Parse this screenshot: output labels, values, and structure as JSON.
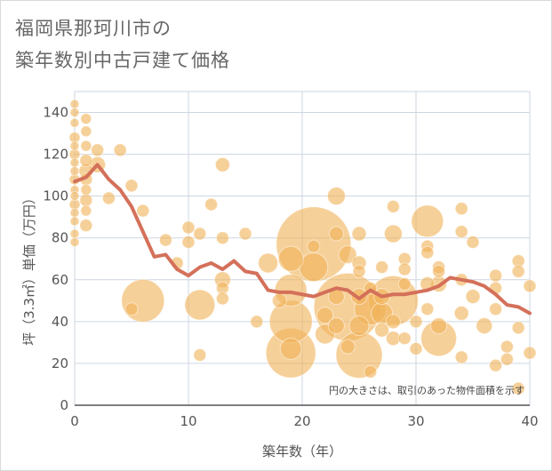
{
  "title_line1": "福岡県那珂川市の",
  "title_line2": "築年数別中古戸建て価格",
  "note": "円の大きさは、取引のあった物件面積を示す",
  "colors": {
    "bubble": "#f0b35a",
    "trend": "#d4705a",
    "grid": "#cdd6e0",
    "axis_text": "#555555"
  },
  "chart_data": {
    "type": "scatter",
    "title": "福岡県那珂川市の 築年数別中古戸建て価格",
    "xlabel": "築年数（年）",
    "ylabel": "坪（3.3㎡）単価（万円）",
    "xlim": [
      0,
      40
    ],
    "ylim": [
      0,
      150
    ],
    "x_ticks": [
      0,
      10,
      20,
      30,
      40
    ],
    "y_ticks": [
      0,
      20,
      40,
      60,
      80,
      100,
      120,
      140
    ],
    "grid": true,
    "size_meaning": "円の大きさは、取引のあった物件面積を示す",
    "bubbles": [
      {
        "x": 0,
        "y": 144,
        "s": 5
      },
      {
        "x": 0,
        "y": 140,
        "s": 5
      },
      {
        "x": 0,
        "y": 135,
        "s": 5
      },
      {
        "x": 0,
        "y": 128,
        "s": 6
      },
      {
        "x": 0,
        "y": 124,
        "s": 5
      },
      {
        "x": 0,
        "y": 120,
        "s": 6
      },
      {
        "x": 0,
        "y": 116,
        "s": 5
      },
      {
        "x": 0,
        "y": 112,
        "s": 5
      },
      {
        "x": 0,
        "y": 108,
        "s": 6
      },
      {
        "x": 0,
        "y": 103,
        "s": 5
      },
      {
        "x": 0,
        "y": 100,
        "s": 5
      },
      {
        "x": 0,
        "y": 96,
        "s": 6
      },
      {
        "x": 0,
        "y": 92,
        "s": 5
      },
      {
        "x": 0,
        "y": 88,
        "s": 5
      },
      {
        "x": 0,
        "y": 82,
        "s": 5
      },
      {
        "x": 0,
        "y": 78,
        "s": 5
      },
      {
        "x": 1,
        "y": 137,
        "s": 6
      },
      {
        "x": 1,
        "y": 131,
        "s": 6
      },
      {
        "x": 1,
        "y": 124,
        "s": 6
      },
      {
        "x": 1,
        "y": 117,
        "s": 7
      },
      {
        "x": 1,
        "y": 112,
        "s": 8
      },
      {
        "x": 1,
        "y": 108,
        "s": 7
      },
      {
        "x": 1,
        "y": 103,
        "s": 6
      },
      {
        "x": 1,
        "y": 98,
        "s": 7
      },
      {
        "x": 1,
        "y": 93,
        "s": 6
      },
      {
        "x": 1,
        "y": 86,
        "s": 7
      },
      {
        "x": 2,
        "y": 122,
        "s": 7
      },
      {
        "x": 2,
        "y": 115,
        "s": 9
      },
      {
        "x": 3,
        "y": 99,
        "s": 7
      },
      {
        "x": 4,
        "y": 122,
        "s": 7
      },
      {
        "x": 5,
        "y": 105,
        "s": 7
      },
      {
        "x": 5,
        "y": 46,
        "s": 7
      },
      {
        "x": 6,
        "y": 93,
        "s": 7
      },
      {
        "x": 6,
        "y": 50,
        "s": 24
      },
      {
        "x": 8,
        "y": 79,
        "s": 7
      },
      {
        "x": 9,
        "y": 68,
        "s": 7
      },
      {
        "x": 10,
        "y": 85,
        "s": 7
      },
      {
        "x": 10,
        "y": 78,
        "s": 7
      },
      {
        "x": 11,
        "y": 82,
        "s": 7
      },
      {
        "x": 11,
        "y": 48,
        "s": 17
      },
      {
        "x": 11,
        "y": 24,
        "s": 7
      },
      {
        "x": 12,
        "y": 96,
        "s": 7
      },
      {
        "x": 13,
        "y": 115,
        "s": 8
      },
      {
        "x": 13,
        "y": 80,
        "s": 7
      },
      {
        "x": 13,
        "y": 60,
        "s": 9
      },
      {
        "x": 13,
        "y": 56,
        "s": 7
      },
      {
        "x": 13,
        "y": 51,
        "s": 7
      },
      {
        "x": 15,
        "y": 82,
        "s": 7
      },
      {
        "x": 16,
        "y": 40,
        "s": 7
      },
      {
        "x": 17,
        "y": 68,
        "s": 11
      },
      {
        "x": 18,
        "y": 50,
        "s": 8
      },
      {
        "x": 19,
        "y": 70,
        "s": 14
      },
      {
        "x": 19,
        "y": 55,
        "s": 18
      },
      {
        "x": 19,
        "y": 40,
        "s": 24
      },
      {
        "x": 19,
        "y": 27,
        "s": 12
      },
      {
        "x": 19,
        "y": 25,
        "s": 28
      },
      {
        "x": 21,
        "y": 77,
        "s": 42
      },
      {
        "x": 21,
        "y": 76,
        "s": 7
      },
      {
        "x": 21,
        "y": 66,
        "s": 16
      },
      {
        "x": 22,
        "y": 34,
        "s": 11
      },
      {
        "x": 22,
        "y": 43,
        "s": 9
      },
      {
        "x": 23,
        "y": 100,
        "s": 10
      },
      {
        "x": 23,
        "y": 82,
        "s": 8
      },
      {
        "x": 23,
        "y": 52,
        "s": 9
      },
      {
        "x": 23,
        "y": 38,
        "s": 9
      },
      {
        "x": 24,
        "y": 72,
        "s": 10
      },
      {
        "x": 24,
        "y": 47,
        "s": 38
      },
      {
        "x": 24,
        "y": 28,
        "s": 8
      },
      {
        "x": 25,
        "y": 82,
        "s": 8
      },
      {
        "x": 25,
        "y": 68,
        "s": 8
      },
      {
        "x": 25,
        "y": 64,
        "s": 7
      },
      {
        "x": 25,
        "y": 52,
        "s": 9
      },
      {
        "x": 25,
        "y": 38,
        "s": 11
      },
      {
        "x": 25,
        "y": 24,
        "s": 26
      },
      {
        "x": 26,
        "y": 56,
        "s": 7
      },
      {
        "x": 26,
        "y": 46,
        "s": 18
      },
      {
        "x": 26,
        "y": 16,
        "s": 7
      },
      {
        "x": 27,
        "y": 66,
        "s": 7
      },
      {
        "x": 27,
        "y": 52,
        "s": 9
      },
      {
        "x": 27,
        "y": 44,
        "s": 12
      },
      {
        "x": 27,
        "y": 36,
        "s": 8
      },
      {
        "x": 28,
        "y": 95,
        "s": 7
      },
      {
        "x": 28,
        "y": 82,
        "s": 10
      },
      {
        "x": 28,
        "y": 50,
        "s": 28
      },
      {
        "x": 28,
        "y": 40,
        "s": 8
      },
      {
        "x": 28,
        "y": 32,
        "s": 8
      },
      {
        "x": 29,
        "y": 70,
        "s": 7
      },
      {
        "x": 29,
        "y": 65,
        "s": 7
      },
      {
        "x": 29,
        "y": 58,
        "s": 7
      },
      {
        "x": 29,
        "y": 32,
        "s": 7
      },
      {
        "x": 30,
        "y": 40,
        "s": 7
      },
      {
        "x": 30,
        "y": 27,
        "s": 7
      },
      {
        "x": 31,
        "y": 88,
        "s": 18
      },
      {
        "x": 31,
        "y": 76,
        "s": 7
      },
      {
        "x": 31,
        "y": 73,
        "s": 7
      },
      {
        "x": 31,
        "y": 58,
        "s": 8
      },
      {
        "x": 31,
        "y": 46,
        "s": 7
      },
      {
        "x": 32,
        "y": 66,
        "s": 7
      },
      {
        "x": 32,
        "y": 64,
        "s": 7
      },
      {
        "x": 32,
        "y": 58,
        "s": 9
      },
      {
        "x": 32,
        "y": 38,
        "s": 9
      },
      {
        "x": 32,
        "y": 32,
        "s": 20
      },
      {
        "x": 34,
        "y": 94,
        "s": 7
      },
      {
        "x": 34,
        "y": 83,
        "s": 7
      },
      {
        "x": 34,
        "y": 60,
        "s": 7
      },
      {
        "x": 34,
        "y": 44,
        "s": 8
      },
      {
        "x": 34,
        "y": 23,
        "s": 7
      },
      {
        "x": 35,
        "y": 78,
        "s": 7
      },
      {
        "x": 35,
        "y": 52,
        "s": 8
      },
      {
        "x": 36,
        "y": 38,
        "s": 9
      },
      {
        "x": 37,
        "y": 62,
        "s": 7
      },
      {
        "x": 37,
        "y": 56,
        "s": 7
      },
      {
        "x": 37,
        "y": 46,
        "s": 7
      },
      {
        "x": 37,
        "y": 19,
        "s": 7
      },
      {
        "x": 38,
        "y": 28,
        "s": 7
      },
      {
        "x": 38,
        "y": 22,
        "s": 7
      },
      {
        "x": 39,
        "y": 69,
        "s": 7
      },
      {
        "x": 39,
        "y": 64,
        "s": 7
      },
      {
        "x": 39,
        "y": 37,
        "s": 7
      },
      {
        "x": 39,
        "y": 8,
        "s": 7
      },
      {
        "x": 40,
        "y": 57,
        "s": 7
      },
      {
        "x": 40,
        "y": 25,
        "s": 7
      }
    ],
    "trend": {
      "x": [
        0,
        1,
        2,
        3,
        4,
        5,
        6,
        7,
        8,
        9,
        10,
        11,
        12,
        13,
        14,
        15,
        16,
        17,
        18,
        19,
        20,
        21,
        22,
        23,
        24,
        25,
        26,
        27,
        28,
        29,
        30,
        31,
        32,
        33,
        34,
        35,
        36,
        37,
        38,
        39,
        40
      ],
      "y": [
        107,
        109,
        115,
        108,
        103,
        95,
        83,
        71,
        72,
        65,
        62,
        66,
        68,
        65,
        69,
        64,
        63,
        55,
        54,
        54,
        53,
        52,
        54,
        56,
        55,
        51,
        55,
        52,
        53,
        53,
        54,
        55,
        57,
        61,
        60,
        59,
        57,
        53,
        48,
        47,
        44
      ]
    }
  }
}
